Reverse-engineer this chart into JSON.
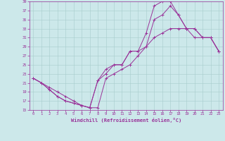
{
  "xlabel": "Windchill (Refroidissement éolien,°C)",
  "background_color": "#cce8ea",
  "line_color": "#993399",
  "grid_color": "#a8cccc",
  "xlim": [
    -0.5,
    23.5
  ],
  "ylim": [
    15,
    39
  ],
  "xticks": [
    0,
    1,
    2,
    3,
    4,
    5,
    6,
    7,
    8,
    9,
    10,
    11,
    12,
    13,
    14,
    15,
    16,
    17,
    18,
    19,
    20,
    21,
    22,
    23
  ],
  "yticks": [
    15,
    17,
    19,
    21,
    23,
    25,
    27,
    29,
    31,
    33,
    35,
    37,
    39
  ],
  "line1_x": [
    0,
    1,
    2,
    3,
    4,
    5,
    6,
    7,
    8,
    9,
    10,
    11,
    12,
    13,
    14,
    15,
    16,
    17,
    18,
    19,
    20,
    21,
    22,
    23
  ],
  "line1_y": [
    22,
    21,
    20,
    19,
    18,
    17,
    16,
    15.5,
    15.5,
    22,
    23,
    24,
    25,
    27,
    29,
    31,
    32,
    33,
    33,
    33,
    31,
    31,
    31,
    28
  ],
  "line2_x": [
    0,
    1,
    2,
    3,
    4,
    5,
    6,
    7,
    8,
    9,
    10,
    11,
    12,
    13,
    14,
    15,
    16,
    17,
    18,
    19,
    20,
    21,
    22,
    23
  ],
  "line2_y": [
    22,
    21,
    19.5,
    18,
    17,
    16.5,
    16,
    15.5,
    21.5,
    23,
    25,
    25,
    28,
    28,
    29,
    35,
    36,
    38,
    36,
    33,
    33,
    31,
    31,
    28
  ],
  "line3_x": [
    0,
    1,
    2,
    3,
    4,
    5,
    6,
    7,
    8,
    9,
    10,
    11,
    12,
    13,
    14,
    15,
    16,
    17,
    18,
    19,
    20,
    21,
    22,
    23
  ],
  "line3_y": [
    22,
    21,
    19.5,
    18,
    17,
    16.5,
    16,
    15.5,
    21.5,
    24,
    25,
    25,
    28,
    28,
    32,
    38,
    39,
    39,
    36,
    33,
    33,
    31,
    31,
    28
  ]
}
